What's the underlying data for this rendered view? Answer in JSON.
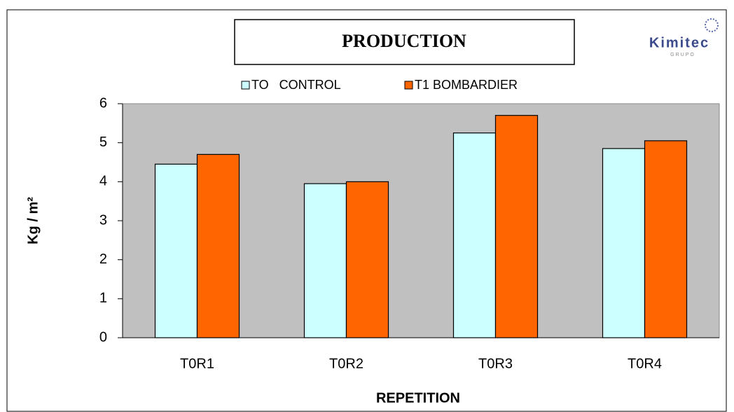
{
  "chart_data": {
    "type": "bar",
    "title": "PRODUCTION",
    "logo": "Kimitec",
    "logo_sub": "GRUPO",
    "categories": [
      "T0R1",
      "T0R2",
      "T0R3",
      "T0R4"
    ],
    "series": [
      {
        "name": "TO   CONTROL",
        "color": "#ccffff",
        "values": [
          4.45,
          3.95,
          5.25,
          4.85
        ]
      },
      {
        "name": "T1 BOMBARDIER",
        "color": "#ff6600",
        "values": [
          4.7,
          4.0,
          5.7,
          5.05
        ]
      }
    ],
    "xlabel": "REPETITION",
    "ylabel": "Kg / m²",
    "ylim": [
      0,
      6
    ],
    "yticks": [
      0,
      1,
      2,
      3,
      4,
      5,
      6
    ],
    "grid": false,
    "legend": "top",
    "plot_background": "#c0c0c0"
  }
}
